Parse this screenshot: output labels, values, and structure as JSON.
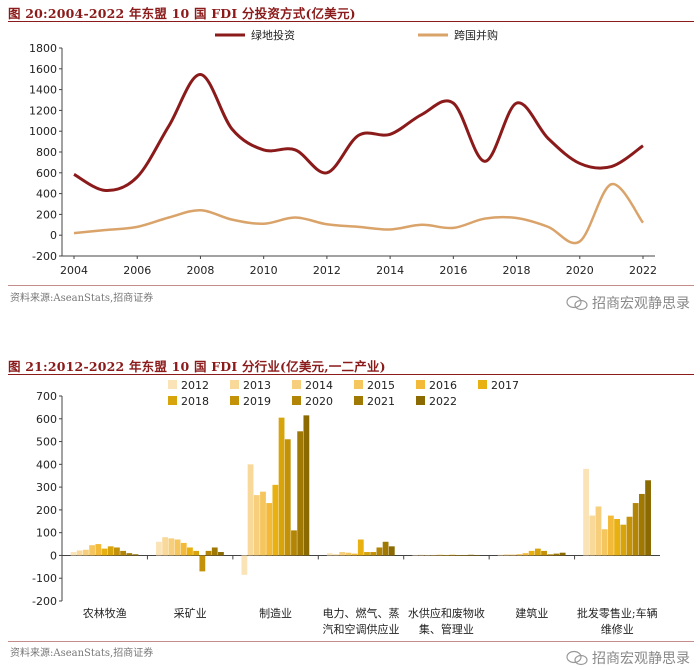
{
  "figure20": {
    "title": "图 20:2004-2022 年东盟 10 国 FDI 分投资方式(亿美元)",
    "source": "资料来源:AseanStats,招商证券",
    "watermark": "招商宏观静思录"
  },
  "figure21": {
    "title": "图 21:2012-2022 年东盟 10 国 FDI 分行业(亿美元,一二产业)",
    "source": "资料来源:AseanStats,招商证券",
    "watermark": "招商宏观静思录"
  },
  "colors": {
    "greenfield": "#8b1a1a",
    "mna": "#d9a36a",
    "title": "#8b1a1a",
    "years": [
      "#fbe3b8",
      "#f9d99a",
      "#f7cf7c",
      "#f5c55e",
      "#f3ba3a",
      "#e8b010",
      "#d8a40c",
      "#c49209",
      "#b38506",
      "#a07804",
      "#8c6a02"
    ]
  },
  "chart_data": [
    {
      "type": "line",
      "x": [
        2004,
        2005,
        2006,
        2007,
        2008,
        2009,
        2010,
        2011,
        2012,
        2013,
        2014,
        2015,
        2016,
        2017,
        2018,
        2019,
        2020,
        2021,
        2022
      ],
      "series": [
        {
          "name": "绿地投资",
          "values": [
            585,
            430,
            560,
            1050,
            1545,
            1020,
            820,
            820,
            600,
            960,
            970,
            1160,
            1270,
            710,
            1270,
            930,
            690,
            660,
            860
          ]
        },
        {
          "name": "跨国并购",
          "values": [
            20,
            50,
            80,
            170,
            240,
            150,
            110,
            170,
            105,
            80,
            55,
            100,
            70,
            160,
            165,
            80,
            -60,
            490,
            120
          ]
        }
      ],
      "ylim": [
        -200,
        1800
      ],
      "yticks": [
        "-200",
        "0",
        "200",
        "400",
        "600",
        "800",
        "1000",
        "1200",
        "1400",
        "1600",
        "1800"
      ],
      "xticks": [
        "2004",
        "2006",
        "2008",
        "2010",
        "2012",
        "2014",
        "2016",
        "2018",
        "2020",
        "2022"
      ],
      "legend": "top",
      "grid": false
    },
    {
      "type": "bar",
      "categories": [
        "农林牧渔",
        "采矿业",
        "制造业",
        "电力、燃气、蒸汽和空调供应业",
        "水供应和废物收集、管理业",
        "建筑业",
        "批发零售业;车辆维修业"
      ],
      "category_lines": [
        [
          "农林牧渔"
        ],
        [
          "采矿业"
        ],
        [
          "制造业"
        ],
        [
          "电力、燃气、蒸",
          "汽和空调供应业"
        ],
        [
          "水供应和废物收",
          "集、管理业"
        ],
        [
          "建筑业"
        ],
        [
          "批发零售业;车辆",
          "维修业"
        ]
      ],
      "series": [
        {
          "name": "2012",
          "values": [
            15,
            60,
            -85,
            10,
            2,
            3,
            380
          ]
        },
        {
          "name": "2013",
          "values": [
            22,
            80,
            400,
            5,
            3,
            5,
            175
          ]
        },
        {
          "name": "2014",
          "values": [
            25,
            75,
            265,
            15,
            2,
            4,
            215
          ]
        },
        {
          "name": "2015",
          "values": [
            45,
            70,
            280,
            12,
            2,
            6,
            115
          ]
        },
        {
          "name": "2016",
          "values": [
            50,
            55,
            230,
            8,
            3,
            10,
            175
          ]
        },
        {
          "name": "2017",
          "values": [
            30,
            35,
            310,
            70,
            2,
            20,
            160
          ]
        },
        {
          "name": "2018",
          "values": [
            40,
            20,
            605,
            15,
            3,
            30,
            135
          ]
        },
        {
          "name": "2019",
          "values": [
            35,
            -70,
            510,
            15,
            2,
            20,
            170
          ]
        },
        {
          "name": "2020",
          "values": [
            20,
            20,
            110,
            35,
            2,
            5,
            230
          ]
        },
        {
          "name": "2021",
          "values": [
            10,
            35,
            545,
            60,
            3,
            8,
            270
          ]
        },
        {
          "name": "2022",
          "values": [
            5,
            15,
            615,
            40,
            2,
            12,
            330
          ]
        }
      ],
      "ylim": [
        -200,
        700
      ],
      "yticks": [
        "-200",
        "-100",
        "0",
        "100",
        "200",
        "300",
        "400",
        "500",
        "600",
        "700"
      ],
      "legend": "top",
      "grid": false
    }
  ]
}
